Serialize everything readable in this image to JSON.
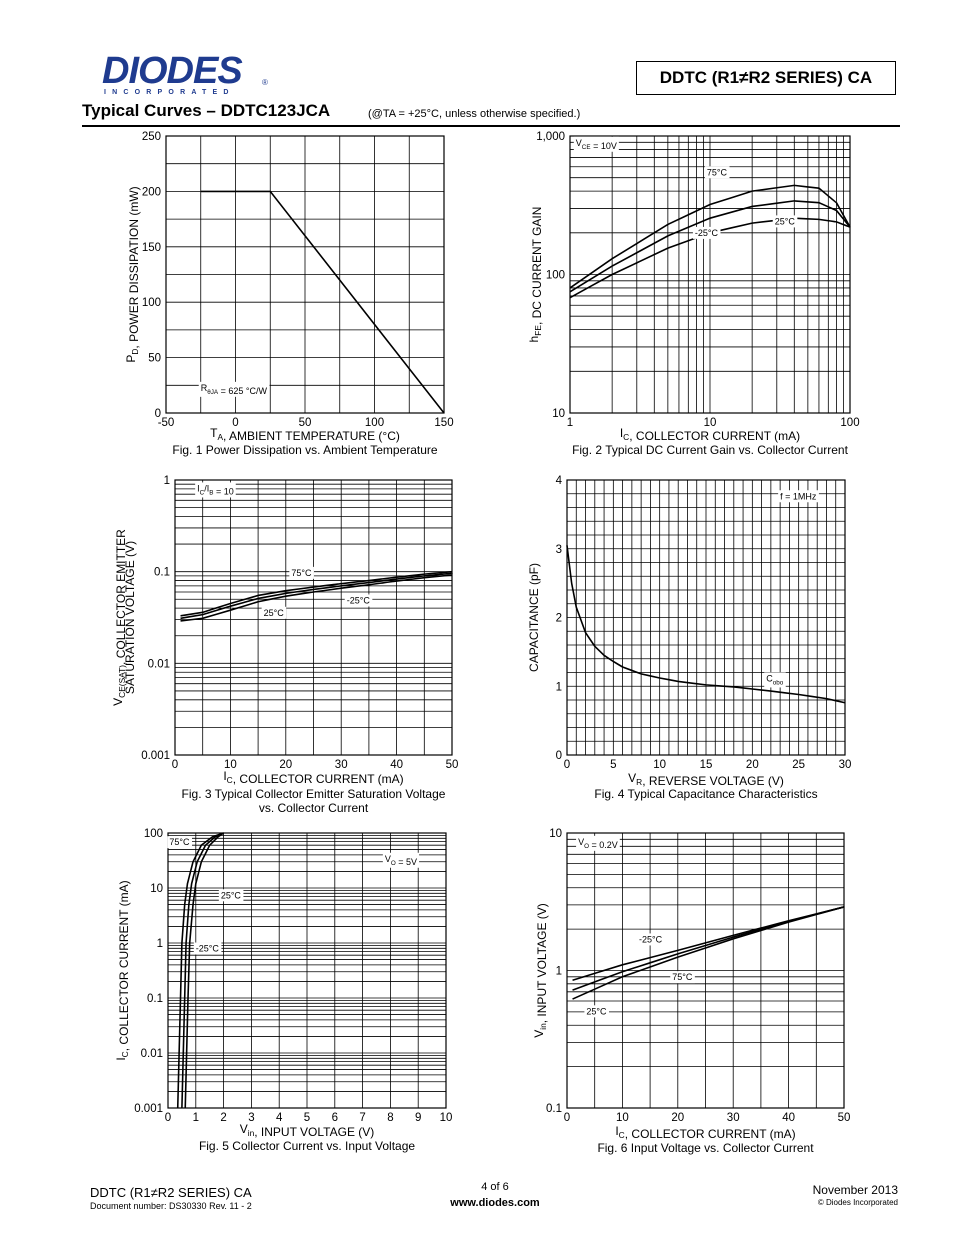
{
  "header": {
    "logo_text": "DIODES",
    "logo_sub": "INCORPORATED",
    "part": "DDTC (R1≠R2 SERIES) CA",
    "title": "Typical Curves – DDTC123JCA",
    "subtitle": "(@TA = +25°C, unless otherwise specified.)"
  },
  "footer": {
    "part": "DDTC (R1≠R2 SERIES) CA",
    "doc": "Document number: DS30330 Rev. 11 - 2",
    "page": "4 of 6",
    "url": "www.diodes.com",
    "date": "November 2013",
    "copyright": "© Diodes Incorporated"
  },
  "chart_data": [
    {
      "id": "fig1",
      "type": "line",
      "caption": "Fig. 1 Power Dissipation vs. Ambient Temperature",
      "xlabel": "TA, AMBIENT TEMPERATURE (°C)",
      "ylabel": "PD, POWER DISSIPATION (mW)",
      "xlim": [
        -50,
        150
      ],
      "ylim": [
        0,
        250
      ],
      "xticks": [
        -50,
        0,
        50,
        100,
        150
      ],
      "yticks": [
        0,
        50,
        100,
        150,
        200,
        250
      ],
      "annotations": [
        {
          "text": "RθJA = 625 °C/W",
          "x": -25,
          "y": 20
        }
      ],
      "series": [
        {
          "x": [
            -25,
            25,
            150
          ],
          "y": [
            200,
            200,
            0
          ]
        }
      ]
    },
    {
      "id": "fig2",
      "type": "line",
      "caption": "Fig. 2 Typical DC Current Gain vs. Collector Current",
      "xlabel": "IC, COLLECTOR CURRENT (mA)",
      "ylabel": "hFE, DC CURRENT GAIN",
      "xscale": "log",
      "yscale": "log",
      "xlim": [
        1,
        100
      ],
      "ylim": [
        10,
        1000
      ],
      "xticks": [
        1,
        10,
        100
      ],
      "yticks": [
        10,
        100,
        1000
      ],
      "ytick_labels": [
        "10",
        "100",
        "1,000"
      ],
      "annotations": [
        {
          "text": "VCE = 10V",
          "x": 1.1,
          "y": 850
        },
        {
          "text": "75°C",
          "x": 9.5,
          "y": 520
        },
        {
          "text": "-25°C",
          "x": 7.8,
          "y": 190
        },
        {
          "text": "25°C",
          "x": 29,
          "y": 230
        }
      ],
      "series": [
        {
          "name": "75°C",
          "x": [
            1,
            2,
            5,
            10,
            20,
            40,
            60,
            80,
            100
          ],
          "y": [
            80,
            130,
            230,
            320,
            400,
            440,
            420,
            330,
            220
          ]
        },
        {
          "name": "25°C",
          "x": [
            1,
            2,
            5,
            10,
            20,
            40,
            60,
            80,
            100
          ],
          "y": [
            75,
            115,
            190,
            255,
            310,
            340,
            330,
            290,
            220
          ]
        },
        {
          "name": "-25°C",
          "x": [
            1,
            2,
            5,
            10,
            20,
            40,
            60,
            80,
            100
          ],
          "y": [
            68,
            100,
            155,
            200,
            235,
            255,
            250,
            240,
            220
          ]
        }
      ]
    },
    {
      "id": "fig3",
      "type": "line",
      "caption": "Fig. 3 Typical Collector Emitter Saturation Voltage vs. Collector Current",
      "caption_lines": [
        "Fig. 3 Typical Collector Emitter Saturation Voltage",
        "vs. Collector Current"
      ],
      "xlabel": "IC, COLLECTOR CURRENT (mA)",
      "ylabel": "VCE(SAT), COLLECTOR EMITTER SATURATION VOLTAGE (V)",
      "ylabel_lines": [
        "VCE(SAT), COLLECTOR EMITTER",
        "SATURATION VOLTAGE (V)"
      ],
      "yscale": "log",
      "xlim": [
        0,
        50
      ],
      "ylim": [
        0.001,
        1
      ],
      "xticks": [
        0,
        10,
        20,
        30,
        40,
        50
      ],
      "yticks": [
        0.001,
        0.01,
        0.1,
        1
      ],
      "ytick_labels": [
        "0.001",
        "0.01",
        "0.1",
        "1"
      ],
      "annotations": [
        {
          "text": "IC/IB = 10",
          "x": 4,
          "y": 0.75
        },
        {
          "text": "75°C",
          "x": 21,
          "y": 0.09
        },
        {
          "text": "-25°C",
          "x": 31,
          "y": 0.045
        },
        {
          "text": "25°C",
          "x": 16,
          "y": 0.033
        }
      ],
      "series": [
        {
          "name": "75°C",
          "x": [
            1,
            5,
            10,
            15,
            20,
            25,
            30,
            35,
            40,
            45,
            50
          ],
          "y": [
            0.033,
            0.036,
            0.045,
            0.055,
            0.062,
            0.068,
            0.074,
            0.08,
            0.087,
            0.094,
            0.1
          ]
        },
        {
          "name": "25°C",
          "x": [
            1,
            5,
            10,
            15,
            20,
            25,
            30,
            35,
            40,
            45,
            50
          ],
          "y": [
            0.031,
            0.034,
            0.042,
            0.051,
            0.058,
            0.064,
            0.07,
            0.076,
            0.083,
            0.09,
            0.096
          ]
        },
        {
          "name": "-25°C",
          "x": [
            1,
            5,
            10,
            15,
            20,
            25,
            30,
            35,
            40,
            45,
            50
          ],
          "y": [
            0.029,
            0.031,
            0.038,
            0.047,
            0.054,
            0.06,
            0.066,
            0.072,
            0.079,
            0.086,
            0.092
          ]
        }
      ]
    },
    {
      "id": "fig4",
      "type": "line",
      "caption": "Fig. 4  Typical Capacitance Characteristics",
      "xlabel": "VR, REVERSE VOLTAGE (V)",
      "ylabel": "CAPACITANCE (pF)",
      "xlim": [
        0,
        30
      ],
      "ylim": [
        0,
        4
      ],
      "xticks": [
        0,
        5,
        10,
        15,
        20,
        25,
        30
      ],
      "yticks": [
        0,
        1,
        2,
        3,
        4
      ],
      "annotations": [
        {
          "text": "f = 1MHz",
          "x": 23,
          "y": 3.72
        },
        {
          "text": "Cobo",
          "x": 21.5,
          "y": 1.07
        }
      ],
      "series": [
        {
          "name": "Cobo",
          "x": [
            0,
            0.5,
            1,
            2,
            3,
            4,
            5,
            6,
            8,
            10,
            12,
            15,
            18,
            20,
            22,
            25,
            28,
            30
          ],
          "y": [
            3.05,
            2.5,
            2.15,
            1.78,
            1.58,
            1.45,
            1.36,
            1.28,
            1.18,
            1.12,
            1.07,
            1.02,
            0.99,
            0.96,
            0.93,
            0.88,
            0.82,
            0.76
          ]
        }
      ]
    },
    {
      "id": "fig5",
      "type": "line",
      "caption": "Fig. 5  Collector Current vs. Input Voltage",
      "xlabel": "Vin, INPUT VOLTAGE (V)",
      "ylabel": "IC, COLLECTOR CURRENT (mA)",
      "yscale": "log",
      "xlim": [
        0,
        10
      ],
      "ylim": [
        0.001,
        100
      ],
      "xticks": [
        0,
        1,
        2,
        3,
        4,
        5,
        6,
        7,
        8,
        9,
        10
      ],
      "yticks": [
        0.001,
        0.01,
        0.1,
        1,
        10,
        100
      ],
      "ytick_labels": [
        "0.001",
        "0.01",
        "0.1",
        "1",
        "10",
        "100"
      ],
      "annotations": [
        {
          "text": "75°C",
          "x": 0.05,
          "y": 60
        },
        {
          "text": "VO = 5V",
          "x": 7.8,
          "y": 30
        },
        {
          "text": "25°C",
          "x": 1.9,
          "y": 6.5
        },
        {
          "text": "-25°C",
          "x": 1.0,
          "y": 0.7
        }
      ],
      "series": [
        {
          "name": "75°C",
          "x": [
            0.35,
            0.4,
            0.45,
            0.5,
            0.6,
            0.7,
            0.9,
            1.2,
            1.6,
            2.0
          ],
          "y": [
            0.001,
            0.01,
            0.1,
            1,
            5,
            12,
            30,
            60,
            85,
            100
          ]
        },
        {
          "name": "25°C",
          "x": [
            0.5,
            0.55,
            0.6,
            0.65,
            0.75,
            0.85,
            1.05,
            1.35,
            1.7,
            2.0
          ],
          "y": [
            0.001,
            0.01,
            0.1,
            1,
            5,
            12,
            30,
            60,
            85,
            100
          ]
        },
        {
          "name": "-25°C",
          "x": [
            0.62,
            0.67,
            0.72,
            0.78,
            0.9,
            1.0,
            1.2,
            1.5,
            1.8,
            2.0
          ],
          "y": [
            0.001,
            0.01,
            0.1,
            1,
            5,
            12,
            30,
            60,
            85,
            100
          ]
        }
      ]
    },
    {
      "id": "fig6",
      "type": "line",
      "caption": "Fig. 6  Input Voltage vs. Collector Current",
      "xlabel": "IC, COLLECTOR CURRENT (mA)",
      "ylabel": "Vin, INPUT VOLTAGE (V)",
      "yscale": "log",
      "xlim": [
        0,
        50
      ],
      "ylim": [
        0.1,
        10
      ],
      "xticks": [
        0,
        10,
        20,
        30,
        40,
        50
      ],
      "yticks": [
        0.1,
        1,
        10
      ],
      "ytick_labels": [
        "0.1",
        "1",
        "10"
      ],
      "annotations": [
        {
          "text": "VO = 0.2V",
          "x": 2,
          "y": 8.2
        },
        {
          "text": "-25°C",
          "x": 13,
          "y": 1.6
        },
        {
          "text": "75°C",
          "x": 19,
          "y": 0.85
        },
        {
          "text": "25°C",
          "x": 3.5,
          "y": 0.48
        }
      ],
      "series": [
        {
          "name": "-25°C",
          "x": [
            1,
            10,
            20,
            30,
            40,
            50
          ],
          "y": [
            0.85,
            1.1,
            1.4,
            1.8,
            2.3,
            2.9
          ]
        },
        {
          "name": "25°C",
          "x": [
            1,
            10,
            20,
            30,
            40,
            50
          ],
          "y": [
            0.62,
            0.9,
            1.25,
            1.7,
            2.25,
            2.9
          ]
        },
        {
          "name": "75°C",
          "x": [
            1,
            10,
            20,
            30,
            40,
            50
          ],
          "y": [
            0.72,
            0.98,
            1.32,
            1.75,
            2.28,
            2.9
          ]
        }
      ]
    }
  ]
}
